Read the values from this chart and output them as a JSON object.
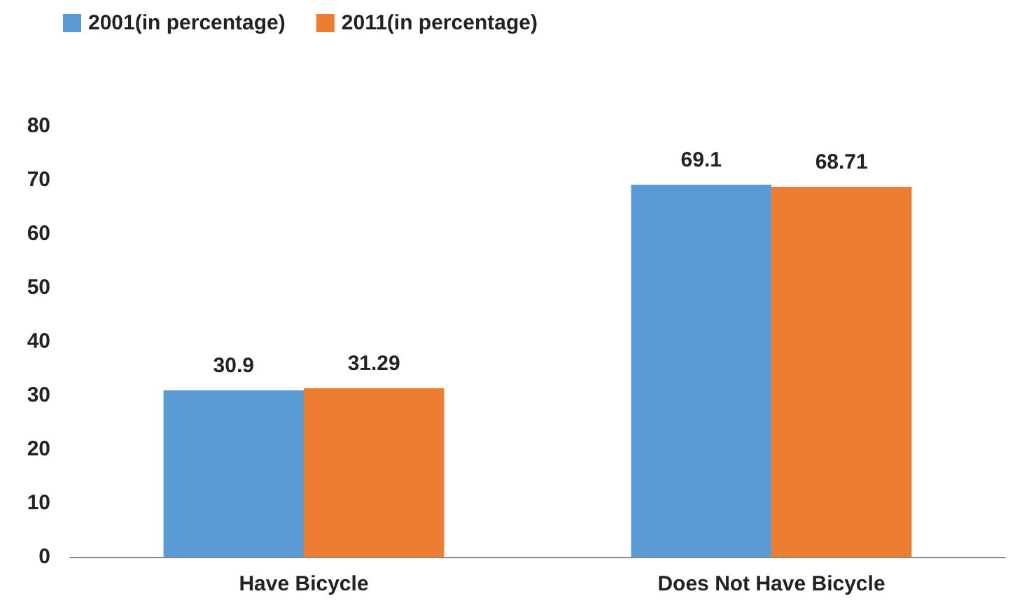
{
  "chart_data": {
    "type": "bar",
    "categories": [
      "Have Bicycle",
      "Does Not Have Bicycle"
    ],
    "series": [
      {
        "name": "2001(in percentage)",
        "color": "#5b9bd5",
        "values": [
          30.9,
          69.1
        ]
      },
      {
        "name": "2011(in percentage)",
        "color": "#ed7d31",
        "values": [
          31.29,
          68.71
        ]
      }
    ],
    "ylim": [
      0,
      80
    ],
    "yticks": [
      0,
      10,
      20,
      30,
      40,
      50,
      60,
      70,
      80
    ],
    "grid": false,
    "legend": "top left",
    "data_labels": true
  }
}
